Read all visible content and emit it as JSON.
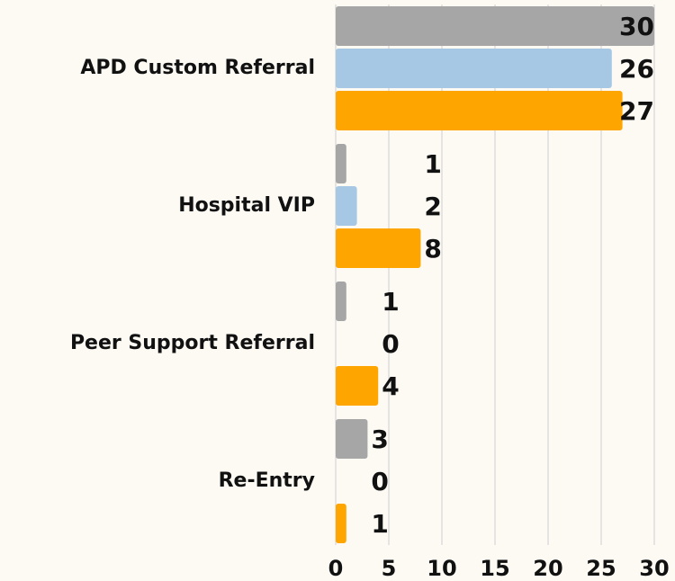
{
  "chart_data": {
    "type": "hbar",
    "categories": [
      "APD Custom Referral",
      "Hospital VIP",
      "Peer Support Referral",
      "Re-Entry"
    ],
    "series": [
      {
        "color": "#a6a6a6",
        "values": [
          30,
          1,
          1,
          3
        ]
      },
      {
        "color": "#a6c8e4",
        "values": [
          26,
          2,
          0,
          0
        ]
      },
      {
        "color": "#ffa500",
        "values": [
          27,
          8,
          4,
          1
        ]
      }
    ],
    "xlim": [
      0,
      30
    ],
    "xticks": [
      0,
      5,
      10,
      15,
      20,
      25,
      30
    ],
    "grid": true
  }
}
